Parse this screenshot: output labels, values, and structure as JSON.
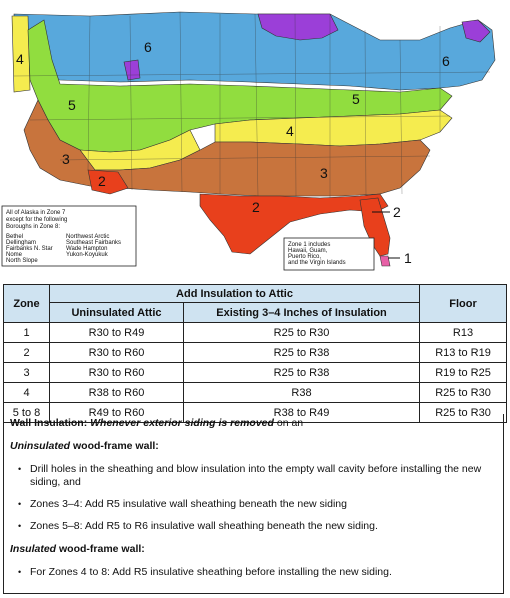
{
  "colors": {
    "zone1": "#e75fa6",
    "zone2": "#e8401c",
    "zone3": "#c8743d",
    "zone4": "#f5ec4f",
    "zone5": "#91dd3f",
    "zone6": "#58a8dc",
    "zone7": "#9b3fd8",
    "header_bg": "#cfe3f1"
  },
  "map": {
    "zone_labels": {
      "z4_west": "4",
      "z6_north": "6",
      "z5_west": "5",
      "z6_east": "6",
      "z5_east": "5",
      "z4_mid": "4",
      "z3_west": "3",
      "z3_east": "3",
      "z2_southwest": "2",
      "z2_gulf": "2",
      "z2_callout": "2",
      "z1_callout": "1"
    },
    "alaska_legend": {
      "intro": [
        "All of Alaska in Zone 7",
        "except for the following",
        "Boroughs in Zone 8:"
      ],
      "col1": [
        "Bethel",
        "Dellingham",
        "Fairbanks N. Star",
        "Nome",
        "North Slope"
      ],
      "col2": [
        "Northwest Arctic",
        "Southeast Fairbanks",
        "Wade Hampton",
        "Yukon-Koyukuk"
      ]
    },
    "zone1_legend": [
      "Zone 1 includes",
      "Hawaii, Guam,",
      "Puerto Rico,",
      "and the Virgin Islands"
    ]
  },
  "table": {
    "col_zone": "Zone",
    "col_add": "Add Insulation to Attic",
    "col_floor": "Floor",
    "sub_uninsulated": "Uninsulated Attic",
    "sub_existing": "Existing 3–4 Inches of Insulation",
    "rows": [
      {
        "zone": "1",
        "uninsulated": "R30 to R49",
        "existing": "R25 to R30",
        "floor": "R13"
      },
      {
        "zone": "2",
        "uninsulated": "R30 to R60",
        "existing": "R25 to R38",
        "floor": "R13 to R19"
      },
      {
        "zone": "3",
        "uninsulated": "R30 to R60",
        "existing": "R25 to R38",
        "floor": "R19 to R25"
      },
      {
        "zone": "4",
        "uninsulated": "R38 to R60",
        "existing": "R38",
        "floor": "R25 to R30"
      },
      {
        "zone": "5 to 8",
        "uninsulated": "R49 to R60",
        "existing": "R38 to R49",
        "floor": "R25 to R30"
      }
    ]
  },
  "notes": {
    "wall_title": "Wall Insulation:",
    "wall_condition": "Whenever exterior siding is removed",
    "wall_tail": " on an",
    "uninsulated_word": "Uninsulated",
    "uninsulated_rest": " wood-frame wall:",
    "uninsulated_bullets": [
      "Drill holes in the sheathing and blow insulation into the empty wall cavity before installing the new siding, and",
      "Zones 3–4: Add R5 insulative wall sheathing beneath the new siding",
      "Zones 5–8: Add R5 to R6 insulative wall sheathing beneath the new siding."
    ],
    "insulated_word": "Insulated",
    "insulated_rest": " wood-frame wall:",
    "insulated_bullets": [
      "For Zones 4 to 8: Add R5 insulative sheathing before installing the new siding."
    ]
  }
}
